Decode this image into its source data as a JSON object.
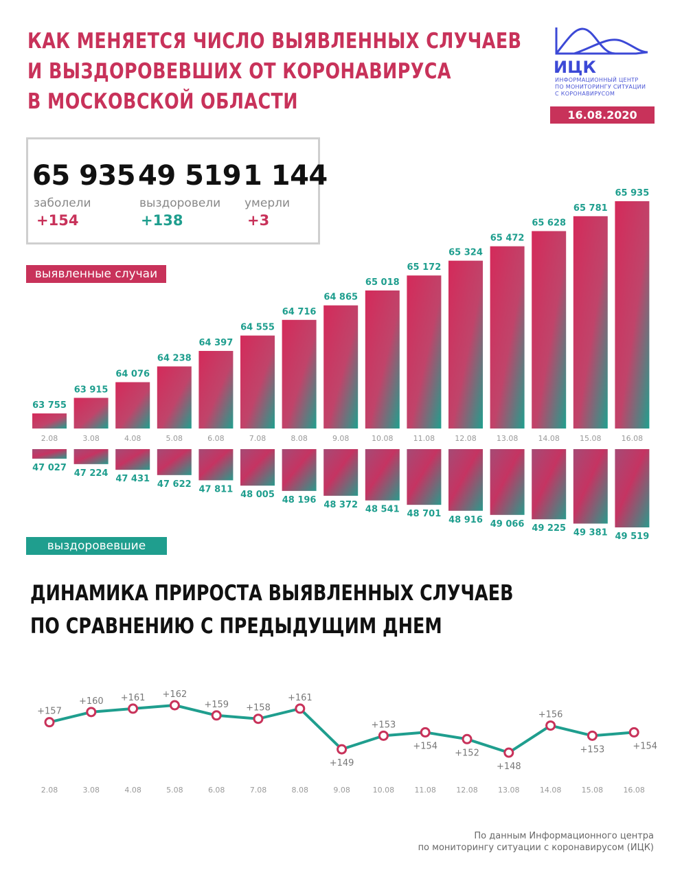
{
  "header": {
    "title_lines": [
      "КАК МЕНЯЕТСЯ ЧИСЛО ВЫЯВЛЕННЫХ СЛУЧАЕВ",
      "И ВЫЗДОРОВЕВШИХ ОТ КОРОНАВИРУСА",
      "В МОСКОВСКОЙ ОБЛАСТИ"
    ],
    "logo_abbr": "ИЦК",
    "logo_lines": [
      "ИНФОРМАЦИОННЫЙ ЦЕНТР",
      "ПО МОНИТОРИНГУ СИТУАЦИИ",
      "С КОРОНАВИРУСОМ"
    ],
    "date": "16.08.2020"
  },
  "stats": [
    {
      "value": "65 935",
      "label": "заболели",
      "delta": "+154"
    },
    {
      "value": "49 519",
      "label": "выздоровели",
      "delta": "+138"
    },
    {
      "value": "1 144",
      "label": "умерли",
      "delta": "+3"
    }
  ],
  "tags": {
    "cases": "выявленные случаи",
    "recovered": "выздоровевшие"
  },
  "subtitle_lines": [
    "ДИНАМИКА ПРИРОСТА ВЫЯВЛЕННЫХ СЛУЧАЕВ",
    "ПО СРАВНЕНИЮ С ПРЕДЫДУЩИМ ДНЕМ"
  ],
  "source_lines": [
    "По данным Информационного центра",
    "по мониторингу ситуации с коронавирусом (ИЦК)"
  ],
  "colors": {
    "pink": "#c8325a",
    "teal": "#1f9e8e",
    "line": "#1f9e8e",
    "marker": "#c8325a"
  },
  "chart_data": [
    {
      "type": "bar",
      "categories": [
        "2.08",
        "3.08",
        "4.08",
        "5.08",
        "6.08",
        "7.08",
        "8.08",
        "9.08",
        "10.08",
        "11.08",
        "12.08",
        "13.08",
        "14.08",
        "15.08",
        "16.08"
      ],
      "series": [
        {
          "name": "выявленные случаи",
          "values": [
            63755,
            63915,
            64076,
            64238,
            64397,
            64555,
            64716,
            64865,
            65018,
            65172,
            65324,
            65472,
            65628,
            65781,
            65935
          ],
          "labels": [
            "63 755",
            "63 915",
            "64 076",
            "64 238",
            "64 397",
            "64 555",
            "64 716",
            "64 865",
            "65 018",
            "65 172",
            "65 324",
            "65 472",
            "65 628",
            "65 781",
            "65 935"
          ]
        },
        {
          "name": "выздоровевшие",
          "values": [
            47027,
            47224,
            47431,
            47622,
            47811,
            48005,
            48196,
            48372,
            48541,
            48701,
            48916,
            49066,
            49225,
            49381,
            49519
          ],
          "labels": [
            "47 027",
            "47 224",
            "47 431",
            "47 622",
            "47 811",
            "48 005",
            "48 196",
            "48 372",
            "48 541",
            "48 701",
            "48 916",
            "49 066",
            "49 225",
            "49 381",
            "49 519"
          ]
        }
      ]
    },
    {
      "type": "line",
      "x": [
        "2.08",
        "3.08",
        "4.08",
        "5.08",
        "6.08",
        "7.08",
        "8.08",
        "9.08",
        "10.08",
        "11.08",
        "12.08",
        "13.08",
        "14.08",
        "15.08",
        "16.08"
      ],
      "values": [
        157,
        160,
        161,
        162,
        159,
        158,
        161,
        149,
        153,
        154,
        152,
        148,
        156,
        153,
        154
      ],
      "labels": [
        "+157",
        "+160",
        "+161",
        "+162",
        "+159",
        "+158",
        "+161",
        "+149",
        "+153",
        "+154",
        "+152",
        "+148",
        "+156",
        "+153",
        "+154"
      ]
    }
  ]
}
